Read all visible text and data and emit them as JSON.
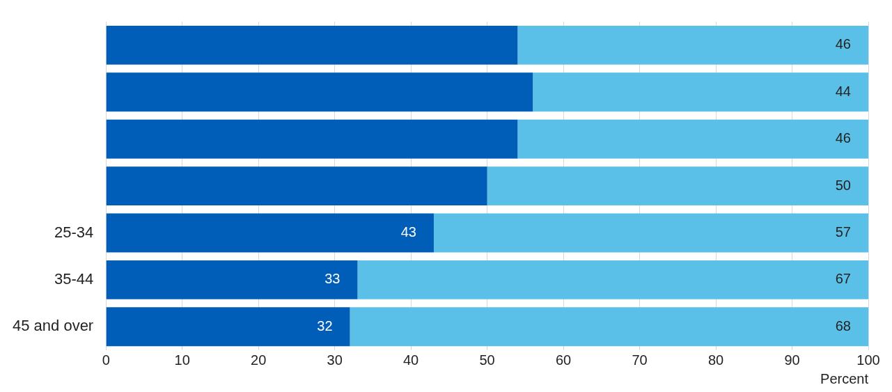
{
  "chart_data": {
    "type": "bar",
    "orientation": "horizontal",
    "stacked": true,
    "xlabel": "Percent",
    "categories": [
      null,
      null,
      null,
      null,
      "25-34",
      "35-44",
      "45 and over"
    ],
    "series": [
      {
        "color": "#005eb8",
        "values": [
          54,
          56,
          54,
          50,
          43,
          33,
          32
        ],
        "value_labels": [
          null,
          null,
          null,
          null,
          "43",
          "33",
          "32"
        ]
      },
      {
        "color": "#5bc0e8",
        "values": [
          46,
          44,
          46,
          50,
          57,
          67,
          68
        ],
        "value_labels": [
          "46",
          "44",
          "46",
          "50",
          "57",
          "67",
          "68"
        ]
      }
    ],
    "xlim": [
      0,
      100
    ],
    "xticks": [
      0,
      10,
      20,
      30,
      40,
      50,
      60,
      70,
      80,
      90,
      100
    ],
    "grid": "x"
  }
}
